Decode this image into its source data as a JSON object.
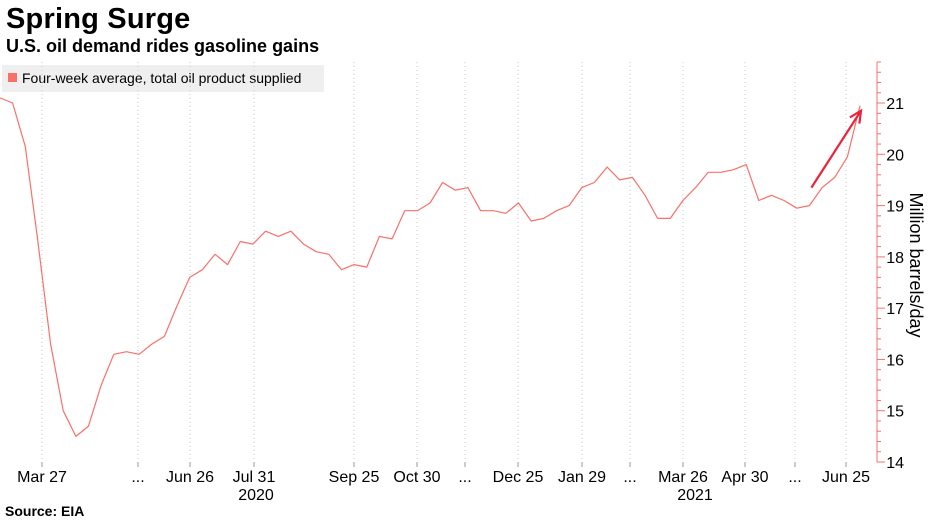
{
  "chart_data": {
    "type": "line",
    "title": "Spring Surge",
    "subtitle": "U.S. oil demand rides gasoline gains",
    "source": "Source: EIA",
    "ylabel": "Million barrels/day",
    "ylim": [
      14,
      21.8
    ],
    "yticks": [
      14,
      15,
      16,
      17,
      18,
      19,
      20,
      21
    ],
    "grid": "vertical dotted",
    "legend_position": "top-left",
    "x_tick_labels": [
      "Mar 27",
      "...",
      "Jun 26",
      "Jul 31",
      "Sep 25",
      "Oct 30",
      "...",
      "Dec 25",
      "Jan 29",
      "...",
      "Mar 26",
      "Apr 30",
      "...",
      "Jun 25"
    ],
    "x_year_labels": [
      "2020",
      "2021"
    ],
    "series": [
      {
        "name": "Four-week average, total oil product supplied",
        "color": "#f7716a",
        "values": [
          21.1,
          21.0,
          20.15,
          18.3,
          16.3,
          15.0,
          14.5,
          14.7,
          15.5,
          16.1,
          16.15,
          16.1,
          16.3,
          16.45,
          17.05,
          17.6,
          17.75,
          18.05,
          17.85,
          18.3,
          18.25,
          18.5,
          18.4,
          18.5,
          18.25,
          18.1,
          18.05,
          17.75,
          17.85,
          17.8,
          18.4,
          18.35,
          18.9,
          18.9,
          19.05,
          19.45,
          19.3,
          19.35,
          18.9,
          18.9,
          18.85,
          19.05,
          18.7,
          18.75,
          18.9,
          19.0,
          19.35,
          19.45,
          19.75,
          19.5,
          19.55,
          19.2,
          18.75,
          18.75,
          19.1,
          19.35,
          19.65,
          19.65,
          19.7,
          19.8,
          19.1,
          19.2,
          19.1,
          18.95,
          19.0,
          19.35,
          19.55,
          19.95,
          20.95
        ]
      }
    ],
    "annotation": {
      "type": "arrow",
      "color": "#e8253d",
      "from_index": 64,
      "from_value": 19.35,
      "to_index": 68,
      "to_value": 20.85
    }
  }
}
